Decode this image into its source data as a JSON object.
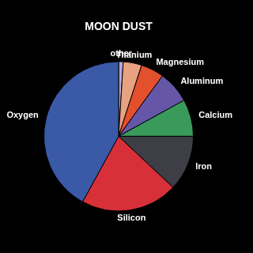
{
  "chart_data": {
    "type": "pie",
    "title": "MOON DUST",
    "categories": [
      "other",
      "Titanium",
      "Magnesium",
      "Aluminum",
      "Calcium",
      "Iron",
      "Silicon",
      "Oxygen"
    ],
    "values": [
      1,
      4,
      5,
      7,
      8,
      12,
      21,
      42
    ],
    "colors": [
      "#b4a8d8",
      "#e8a282",
      "#e2502e",
      "#6656a8",
      "#3a9a5c",
      "#3e3e46",
      "#d83038",
      "#3a5aa8"
    ]
  }
}
